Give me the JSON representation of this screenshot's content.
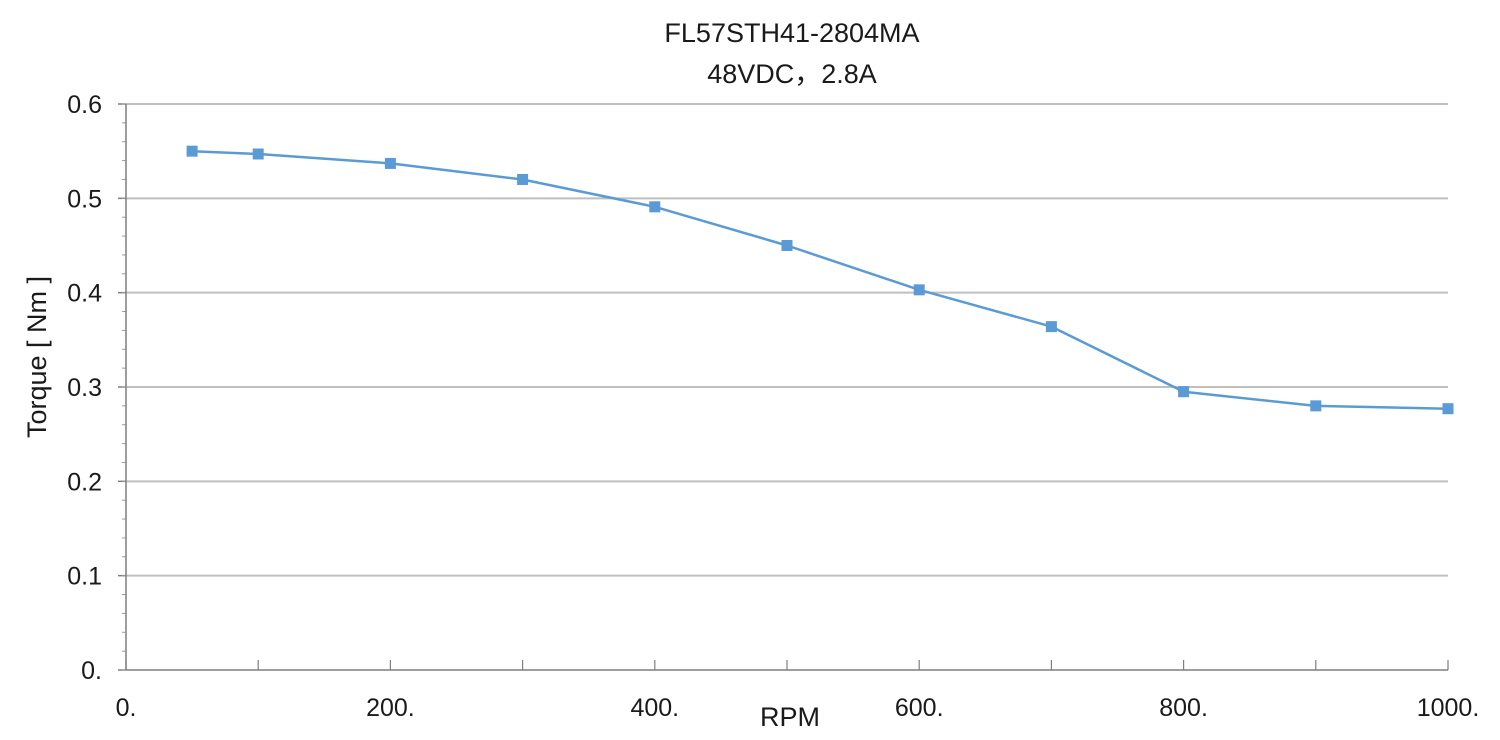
{
  "chart_data": {
    "type": "line",
    "title": "FL57STH41-2804MA",
    "subtitle": "48VDC，2.8A",
    "xlabel": "RPM",
    "ylabel": "Torque [ Nm ]",
    "xlim": [
      0,
      1000
    ],
    "ylim": [
      0,
      0.6
    ],
    "x_ticks": [
      0,
      200,
      400,
      600,
      800,
      1000
    ],
    "x_tick_labels": [
      "0.",
      "200.",
      "400.",
      "600.",
      "800.",
      "1000."
    ],
    "y_ticks": [
      0,
      0.1,
      0.2,
      0.3,
      0.4,
      0.5,
      0.6
    ],
    "y_tick_labels": [
      "0.",
      "0.1",
      "0.2",
      "0.3",
      "0.4",
      "0.5",
      "0.6"
    ],
    "grid": "horizontal",
    "legend": "none",
    "series": [
      {
        "x": [
          50,
          100,
          200,
          300,
          400,
          500,
          600,
          700,
          800,
          900,
          1000
        ],
        "y": [
          0.55,
          0.547,
          0.537,
          0.52,
          0.491,
          0.45,
          0.403,
          0.364,
          0.295,
          0.28,
          0.277
        ],
        "color": "#5b9bd5",
        "marker": "square"
      }
    ]
  }
}
